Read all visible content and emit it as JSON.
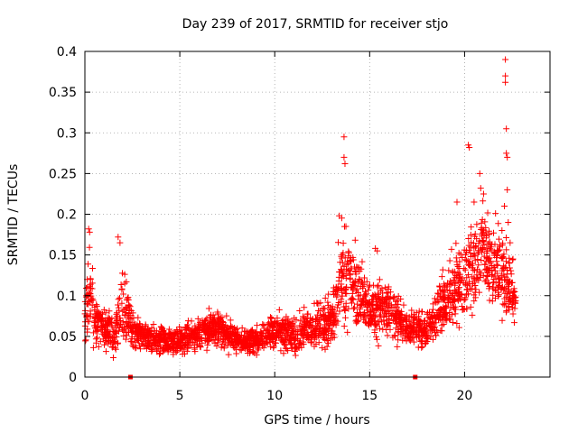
{
  "chart_data": {
    "type": "scatter",
    "title": "Day 239 of 2017, SRMTID for receiver stjo",
    "xlabel": "GPS time / hours",
    "ylabel": "SRMTID / TECUs",
    "xlim": [
      0,
      24.5
    ],
    "ylim": [
      0,
      0.4
    ],
    "xticks": [
      0,
      5,
      10,
      15,
      20
    ],
    "xtick_labels": [
      "0",
      "5",
      "10",
      "15",
      "20"
    ],
    "yticks": [
      0,
      0.05,
      0.1,
      0.15,
      0.2,
      0.25,
      0.3,
      0.35,
      0.4
    ],
    "ytick_labels": [
      "0",
      "0.05",
      "0.1",
      "0.15",
      "0.2",
      "0.25",
      "0.3",
      "0.35",
      "0.4"
    ],
    "grid": true,
    "marker": "+",
    "color": "#ff0000",
    "x_end_hours": 22.7,
    "profile_hours": [
      0,
      0.25,
      0.5,
      1,
      1.5,
      2,
      2.5,
      3,
      4,
      5,
      6,
      7,
      8,
      9,
      10,
      11,
      12,
      13,
      13.5,
      14,
      15,
      16,
      17,
      18,
      19,
      20,
      21,
      22,
      22.7
    ],
    "profile_mean": [
      0.07,
      0.11,
      0.07,
      0.06,
      0.05,
      0.09,
      0.06,
      0.05,
      0.045,
      0.045,
      0.055,
      0.06,
      0.045,
      0.045,
      0.06,
      0.05,
      0.065,
      0.065,
      0.13,
      0.12,
      0.08,
      0.085,
      0.06,
      0.06,
      0.09,
      0.12,
      0.15,
      0.13,
      0.1
    ],
    "profile_spread": [
      0.025,
      0.045,
      0.025,
      0.02,
      0.02,
      0.04,
      0.02,
      0.015,
      0.015,
      0.015,
      0.018,
      0.018,
      0.015,
      0.015,
      0.02,
      0.018,
      0.025,
      0.025,
      0.05,
      0.05,
      0.03,
      0.03,
      0.02,
      0.02,
      0.035,
      0.045,
      0.05,
      0.05,
      0.03
    ],
    "peak_points": [
      {
        "x": 0.2,
        "y": 0.182
      },
      {
        "x": 0.25,
        "y": 0.178
      },
      {
        "x": 1.75,
        "y": 0.172
      },
      {
        "x": 1.85,
        "y": 0.165
      },
      {
        "x": 13.4,
        "y": 0.198
      },
      {
        "x": 13.65,
        "y": 0.295
      },
      {
        "x": 13.65,
        "y": 0.27
      },
      {
        "x": 13.7,
        "y": 0.262
      },
      {
        "x": 13.75,
        "y": 0.185
      },
      {
        "x": 15.3,
        "y": 0.158
      },
      {
        "x": 15.4,
        "y": 0.155
      },
      {
        "x": 19.6,
        "y": 0.215
      },
      {
        "x": 20.2,
        "y": 0.285
      },
      {
        "x": 20.25,
        "y": 0.282
      },
      {
        "x": 20.5,
        "y": 0.215
      },
      {
        "x": 20.8,
        "y": 0.25
      },
      {
        "x": 20.85,
        "y": 0.232
      },
      {
        "x": 21.0,
        "y": 0.225
      },
      {
        "x": 22.15,
        "y": 0.39
      },
      {
        "x": 22.15,
        "y": 0.37
      },
      {
        "x": 22.15,
        "y": 0.362
      },
      {
        "x": 22.2,
        "y": 0.305
      },
      {
        "x": 22.2,
        "y": 0.275
      },
      {
        "x": 22.25,
        "y": 0.27
      },
      {
        "x": 22.25,
        "y": 0.23
      },
      {
        "x": 22.1,
        "y": 0.21
      },
      {
        "x": 22.3,
        "y": 0.19
      },
      {
        "x": 22.4,
        "y": 0.165
      },
      {
        "x": 22.55,
        "y": 0.145
      }
    ],
    "zero_marks": [
      2.4,
      17.4
    ]
  }
}
